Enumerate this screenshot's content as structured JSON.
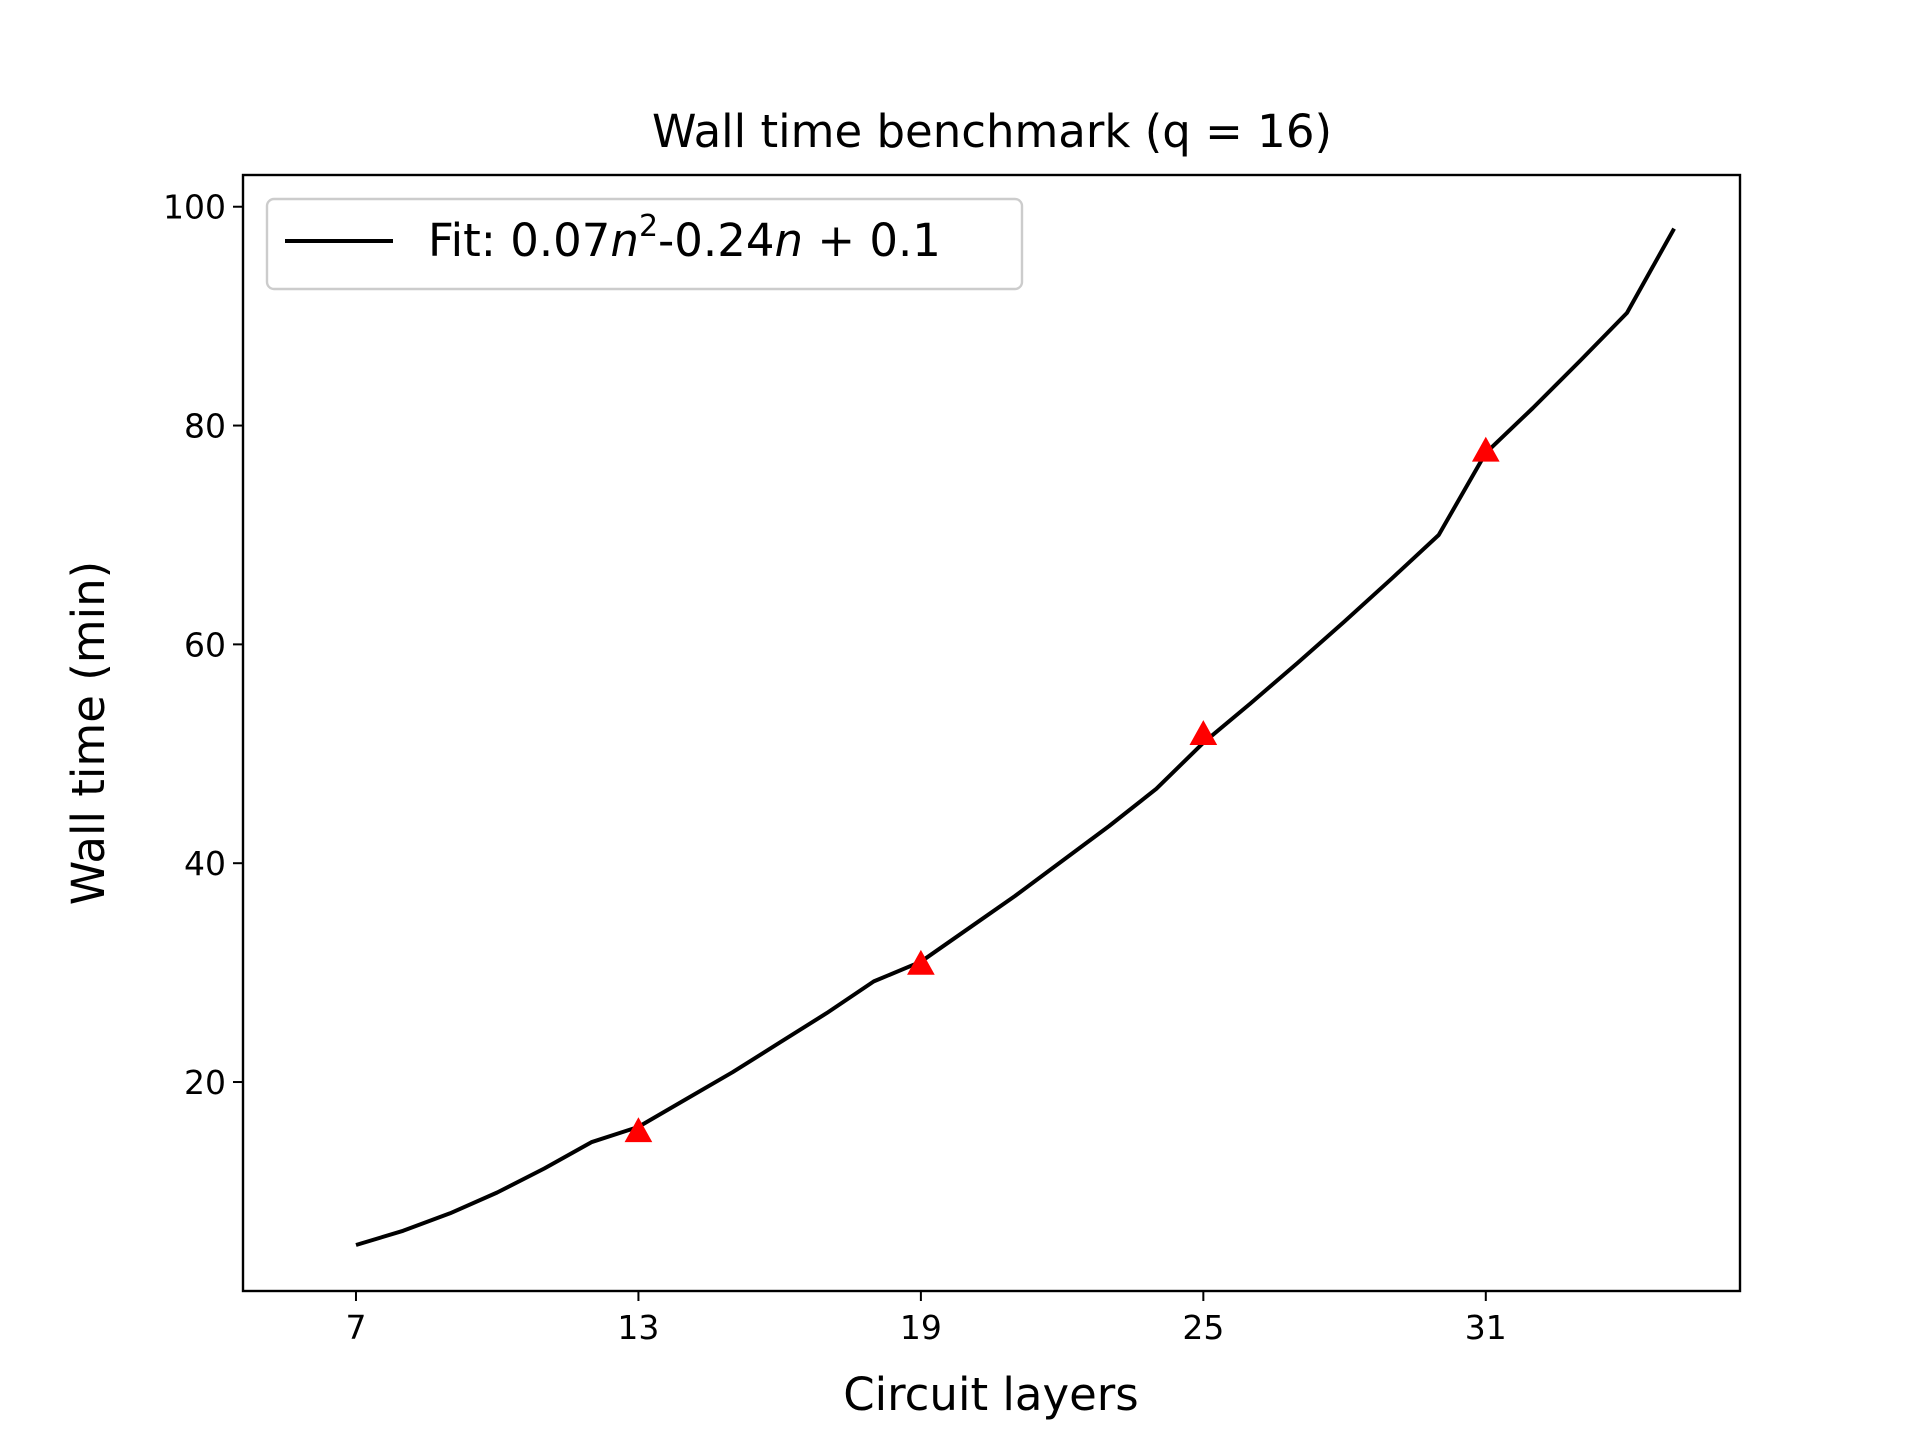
{
  "chart_data": {
    "type": "line",
    "title": "Wall time benchmark (q = 16)",
    "xlabel": "Circuit layers",
    "ylabel": "Wall time (min)",
    "xlim": [
      4.6,
      36.4
    ],
    "ylim": [
      0.9,
      102.9
    ],
    "xticks": [
      7,
      13,
      19,
      25,
      31
    ],
    "yticks": [
      20,
      40,
      60,
      80,
      100
    ],
    "grid": false,
    "legend_position": "top-left",
    "legend": {
      "prefix": "Fit: 0.07",
      "var1": "n",
      "sup": "2",
      "mid": "-0.24",
      "var2": "n",
      "suffix": " + 0.1"
    },
    "series": [
      {
        "name": "Fit: 0.07n²-0.24n + 0.1",
        "kind": "line",
        "color": "#000000",
        "x": [
          7,
          8,
          9,
          10,
          11,
          12,
          13,
          14,
          15,
          16,
          17,
          18,
          19,
          20,
          21,
          22,
          23,
          24,
          25,
          26,
          27,
          28,
          29,
          30,
          31,
          32,
          33,
          34,
          35
        ],
        "y": [
          5.1,
          6.4,
          8.0,
          9.9,
          12.1,
          14.5,
          15.9,
          18.4,
          20.9,
          23.6,
          26.3,
          29.2,
          31.0,
          34.0,
          37.0,
          40.2,
          43.4,
          46.8,
          51.0,
          54.6,
          58.3,
          62.1,
          66.0,
          70.0,
          77.5,
          81.6,
          85.9,
          90.3,
          98.0
        ]
      },
      {
        "name": "",
        "kind": "marker",
        "marker": "triangle",
        "color": "#ff0000",
        "x": [
          13,
          19,
          25,
          31
        ],
        "y": [
          15.5,
          30.8,
          51.8,
          77.7
        ]
      }
    ]
  }
}
